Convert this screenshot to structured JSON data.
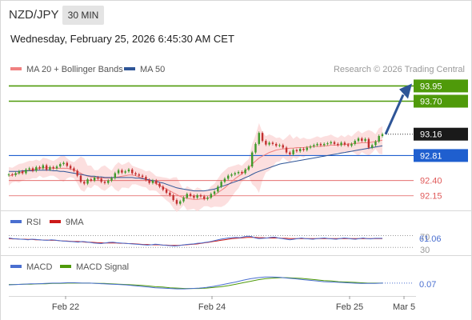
{
  "header": {
    "symbol": "NZD/JPY",
    "timeframe": "30 MIN",
    "datetime": "Wednesday, February 25, 2026 6:45:30 AM CET"
  },
  "legend": {
    "ma20_label": "MA 20 + Bollinger Bands",
    "ma20_color": "#f08080",
    "ma50_label": "MA 50",
    "ma50_color": "#2e5597"
  },
  "attribution": "Research © 2026 Trading Central",
  "colors": {
    "target": "#4f9a0a",
    "pivot": "#1f5fcf",
    "support": "#e05a5a",
    "current": "#1a1a1a",
    "candle_up": "#3f9a2a",
    "candle_down": "#c23030",
    "arrow": "#2e5597",
    "band_fill": "#fcd9d9"
  },
  "levels": {
    "target2": {
      "value": 93.95,
      "label": "93.95"
    },
    "target1": {
      "value": 93.7,
      "label": "93.70"
    },
    "current": {
      "value": 93.16,
      "label": "93.16"
    },
    "pivot": {
      "value": 92.81,
      "label": "92.81"
    },
    "support1": {
      "value": 92.4,
      "label": "92.40"
    },
    "support2": {
      "value": 92.15,
      "label": "92.15"
    }
  },
  "rsi": {
    "legend_rsi": "RSI",
    "legend_rsi_color": "#4a6fd0",
    "legend_ma": "9MA",
    "legend_ma_color": "#cc1a1a",
    "value_label": "61.06",
    "level_70": "70",
    "level_30": "30"
  },
  "macd": {
    "legend_macd": "MACD",
    "legend_macd_color": "#4a6fd0",
    "legend_signal": "MACD Signal",
    "legend_signal_color": "#4f9a0a",
    "value_label": "0.07"
  },
  "xaxis": {
    "ticks": [
      "Feb 22",
      "Feb 24",
      "Feb 25",
      "Mar 5"
    ]
  },
  "chart_data": {
    "type": "line",
    "title": "NZD/JPY",
    "ylim": [
      91.95,
      94.1
    ],
    "key_levels": [
      93.95,
      93.7,
      93.16,
      92.81,
      92.4,
      92.15
    ],
    "price": {
      "name": "NZD/JPY",
      "values": [
        92.5,
        92.49,
        92.52,
        92.55,
        92.52,
        92.58,
        92.6,
        92.56,
        92.62,
        92.6,
        92.65,
        92.58,
        92.62,
        92.6,
        92.63,
        92.67,
        92.69,
        92.64,
        92.6,
        92.56,
        92.48,
        92.38,
        92.35,
        92.42,
        92.4,
        92.45,
        92.43,
        92.38,
        92.36,
        92.4,
        92.44,
        92.52,
        92.57,
        92.53,
        92.55,
        92.58,
        92.52,
        92.5,
        92.48,
        92.46,
        92.41,
        92.36,
        92.4,
        92.35,
        92.3,
        92.25,
        92.2,
        92.16,
        92.08,
        92.02,
        92.06,
        92.12,
        92.18,
        92.15,
        92.12,
        92.16,
        92.14,
        92.1,
        92.12,
        92.18,
        92.22,
        92.3,
        92.38,
        92.43,
        92.48,
        92.5,
        92.52,
        92.54,
        92.52,
        92.58,
        92.63,
        92.86,
        93.0,
        93.18,
        93.05,
        92.99,
        93.02,
        93.0,
        92.97,
        92.98,
        92.94,
        92.86,
        92.83,
        92.9,
        92.88,
        92.92,
        92.9,
        92.94,
        92.96,
        92.98,
        93.0,
        92.98,
        93.0,
        93.01,
        93.03,
        93.0,
        92.98,
        93.02,
        92.99,
        92.97,
        93.0,
        93.05,
        93.09,
        93.05,
        93.08,
        92.94,
        92.98,
        93.04,
        93.13,
        93.16
      ],
      "ma20": [
        92.47,
        92.49,
        92.51,
        92.52,
        92.54,
        92.56,
        92.57,
        92.58,
        92.59,
        92.6,
        92.61,
        92.61,
        92.61,
        92.6,
        92.6,
        92.6,
        92.6,
        92.6,
        92.59,
        92.57,
        92.55,
        92.52,
        92.49,
        92.47,
        92.46,
        92.45,
        92.44,
        92.44,
        92.44,
        92.44,
        92.44,
        92.45,
        92.46,
        92.47,
        92.48,
        92.49,
        92.49,
        92.48,
        92.46,
        92.44,
        92.42,
        92.4,
        92.38,
        92.35,
        92.32,
        92.29,
        92.26,
        92.23,
        92.2,
        92.17,
        92.14,
        92.12,
        92.11,
        92.1,
        92.09,
        92.09,
        92.1,
        92.1,
        92.11,
        92.13,
        92.16,
        92.2,
        92.24,
        92.28,
        92.33,
        92.38,
        92.43,
        92.47,
        92.51,
        92.56,
        92.61,
        92.67,
        92.72,
        92.77,
        92.8,
        92.83,
        92.86,
        92.88,
        92.9,
        92.91,
        92.92,
        92.92,
        92.93,
        92.93,
        92.94,
        92.94,
        92.94,
        92.95,
        92.95,
        92.96,
        92.96,
        92.96,
        92.97,
        92.97,
        92.98,
        92.98,
        92.98,
        92.99,
        92.99,
        93.0,
        93.0,
        93.01,
        93.01,
        93.02,
        93.02,
        93.02,
        93.03,
        93.04,
        93.05,
        93.06
      ],
      "ma50": [
        92.55,
        92.55,
        92.55,
        92.55,
        92.56,
        92.56,
        92.56,
        92.56,
        92.57,
        92.57,
        92.57,
        92.57,
        92.57,
        92.56,
        92.56,
        92.55,
        92.55,
        92.54,
        92.53,
        92.52,
        92.51,
        92.5,
        92.49,
        92.48,
        92.47,
        92.47,
        92.46,
        92.46,
        92.45,
        92.45,
        92.45,
        92.45,
        92.45,
        92.45,
        92.45,
        92.45,
        92.45,
        92.44,
        92.44,
        92.43,
        92.42,
        92.41,
        92.4,
        92.39,
        92.37,
        92.36,
        92.34,
        92.32,
        92.3,
        92.28,
        92.27,
        92.26,
        92.25,
        92.24,
        92.23,
        92.23,
        92.23,
        92.23,
        92.24,
        92.25,
        92.26,
        92.28,
        92.3,
        92.32,
        92.34,
        92.36,
        92.38,
        92.4,
        92.42,
        92.45,
        92.47,
        92.5,
        92.53,
        92.55,
        92.57,
        92.59,
        92.61,
        92.63,
        92.65,
        92.67,
        92.68,
        92.69,
        92.7,
        92.71,
        92.72,
        92.73,
        92.74,
        92.75,
        92.76,
        92.77,
        92.78,
        92.79,
        92.8,
        92.81,
        92.82,
        92.83,
        92.84,
        92.85,
        92.86,
        92.87,
        92.88,
        92.89,
        92.9,
        92.91,
        92.92,
        92.93,
        92.94,
        92.95,
        92.96,
        92.97
      ]
    },
    "rsi_series": {
      "rsi": [
        62,
        60,
        59,
        58,
        57,
        56,
        58,
        57,
        56,
        55,
        54,
        56,
        55,
        53,
        52,
        51,
        50,
        49,
        48,
        50,
        49,
        47,
        45,
        44,
        43,
        45,
        47,
        48,
        46,
        45,
        44,
        43,
        42,
        41,
        40,
        39,
        38,
        39,
        41,
        40,
        38,
        37,
        36,
        35,
        36,
        38,
        40,
        41,
        42,
        44,
        45,
        47,
        49,
        52,
        55,
        58,
        60,
        62,
        63,
        64,
        63,
        66,
        68,
        67,
        62,
        60,
        61,
        62,
        64,
        65,
        62,
        60,
        58,
        56,
        58,
        60,
        62,
        60,
        59,
        58,
        60,
        61,
        62,
        60,
        59,
        58,
        60,
        62,
        61,
        59,
        58,
        60,
        62,
        60,
        59,
        61,
        61,
        61
      ],
      "ma9": [
        60,
        59,
        59,
        58,
        58,
        57,
        57,
        56,
        56,
        55,
        55,
        54,
        54,
        53,
        52,
        52,
        51,
        50,
        50,
        49,
        48,
        48,
        47,
        46,
        46,
        45,
        45,
        45,
        45,
        44,
        44,
        43,
        43,
        42,
        41,
        40,
        40,
        39,
        39,
        39,
        38,
        38,
        37,
        37,
        37,
        38,
        39,
        40,
        41,
        42,
        44,
        46,
        48,
        50,
        52,
        54,
        56,
        58,
        60,
        61,
        62,
        63,
        64,
        64,
        64,
        63,
        63,
        62,
        62,
        62,
        62,
        61,
        61,
        60,
        60,
        60,
        60,
        60,
        60,
        60,
        60,
        60,
        60,
        60,
        60,
        60,
        60,
        60,
        60,
        60,
        60,
        60,
        60,
        60,
        60,
        60,
        60,
        60
      ]
    },
    "macd_series": {
      "macd": [
        0.02,
        0.03,
        0.04,
        0.05,
        0.05,
        0.06,
        0.07,
        0.07,
        0.08,
        0.08,
        0.07,
        0.07,
        0.06,
        0.05,
        0.04,
        0.03,
        0.02,
        0.0,
        -0.02,
        -0.04,
        -0.06,
        -0.07,
        -0.08,
        -0.09,
        -0.09,
        -0.08,
        -0.07,
        -0.05,
        -0.02,
        0.02,
        0.06,
        0.1,
        0.15,
        0.19,
        0.22,
        0.24,
        0.24,
        0.23,
        0.21,
        0.19,
        0.17,
        0.15,
        0.13,
        0.11,
        0.1,
        0.09,
        0.08,
        0.07,
        0.06,
        0.06,
        0.06,
        0.07
      ],
      "signal": [
        0.03,
        0.03,
        0.04,
        0.04,
        0.05,
        0.05,
        0.06,
        0.06,
        0.07,
        0.07,
        0.07,
        0.07,
        0.06,
        0.06,
        0.05,
        0.04,
        0.03,
        0.02,
        0.01,
        -0.01,
        -0.03,
        -0.04,
        -0.06,
        -0.07,
        -0.08,
        -0.08,
        -0.08,
        -0.07,
        -0.05,
        -0.03,
        0.0,
        0.04,
        0.08,
        0.12,
        0.16,
        0.19,
        0.21,
        0.22,
        0.22,
        0.21,
        0.2,
        0.18,
        0.16,
        0.14,
        0.13,
        0.11,
        0.1,
        0.09,
        0.08,
        0.07,
        0.07,
        0.07
      ]
    }
  }
}
